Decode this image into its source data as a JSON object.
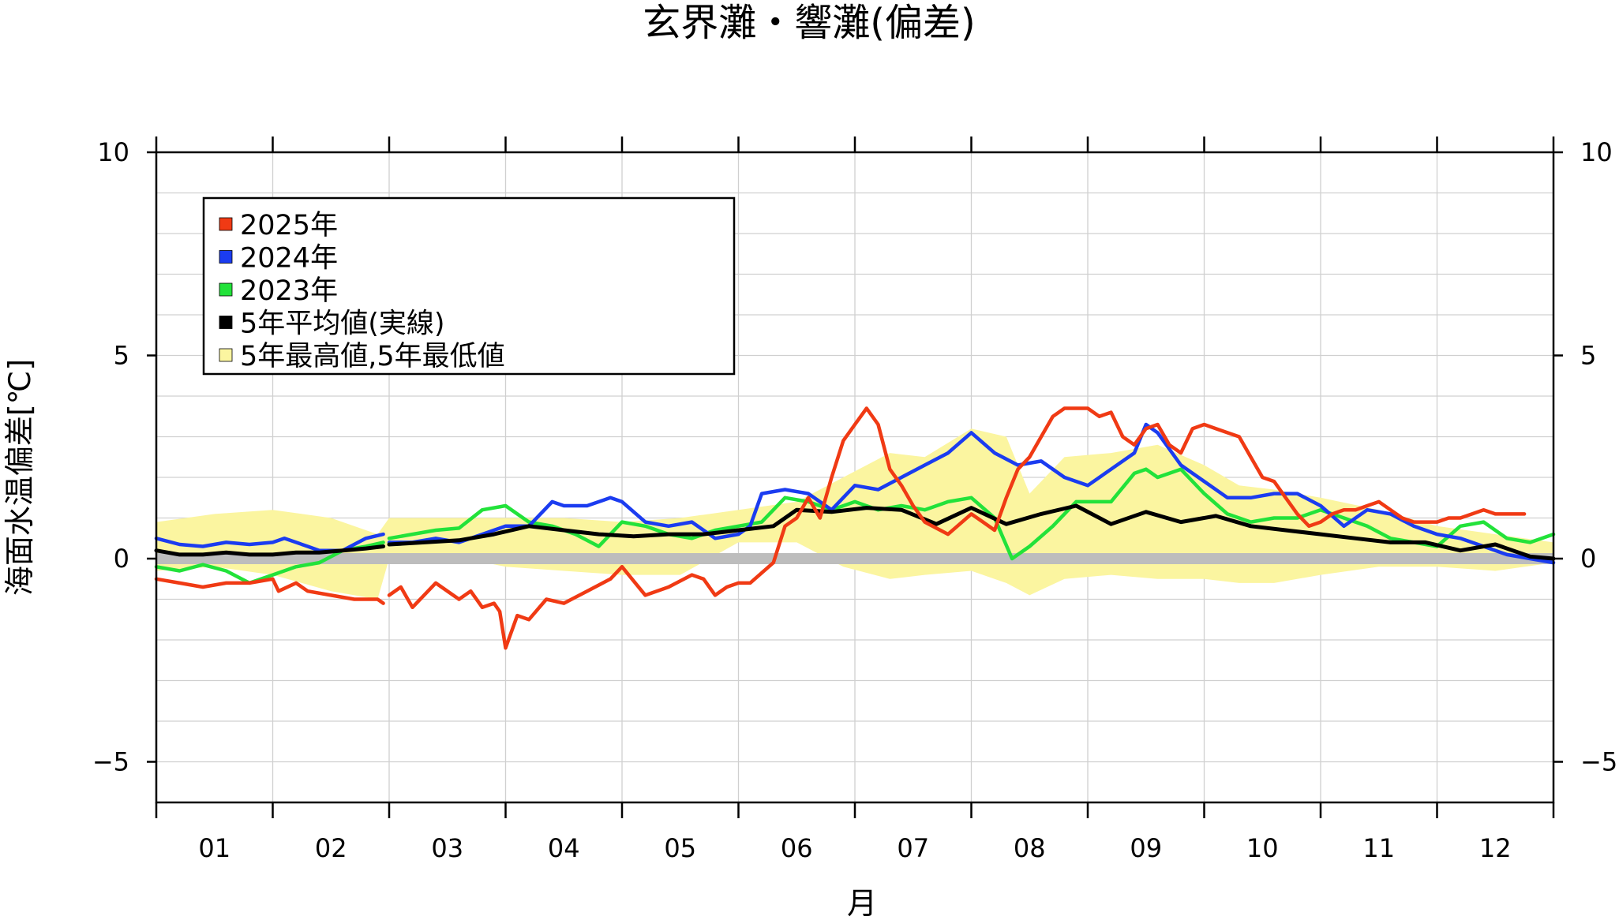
{
  "chart_data": {
    "type": "line",
    "title": "玄界灘・響灘(偏差)",
    "xlabel": "月",
    "ylabel": "海面水温偏差[℃]",
    "ylim": [
      -6,
      10
    ],
    "yticks": [
      10,
      5,
      0,
      -5
    ],
    "ytick_labels": [
      "10",
      "5",
      "0",
      "−5"
    ],
    "minor_grid_step": 1,
    "grid": true,
    "legend_position": "top-left",
    "x_domain": [
      1,
      13
    ],
    "months": [
      "01",
      "02",
      "03",
      "04",
      "05",
      "06",
      "07",
      "08",
      "09",
      "10",
      "11",
      "12"
    ],
    "zero_band": {
      "y": 0,
      "color": "#bdbdbd"
    },
    "band": {
      "name": "5年最高値,5年最低値",
      "color": "#fbf5a0",
      "x": [
        1.0,
        1.5,
        2.0,
        2.5,
        2.9,
        3.0,
        3.5,
        4.0,
        4.5,
        5.0,
        5.5,
        6.0,
        6.5,
        6.9,
        7.3,
        7.6,
        8.0,
        8.3,
        8.5,
        8.8,
        9.2,
        9.6,
        10.0,
        10.3,
        10.6,
        11.0,
        11.5,
        12.0,
        12.5,
        13.0
      ],
      "upper": [
        0.9,
        1.1,
        1.2,
        1.0,
        0.6,
        1.0,
        1.0,
        1.0,
        1.0,
        0.9,
        1.0,
        1.2,
        1.4,
        2.0,
        2.6,
        2.5,
        3.2,
        3.0,
        1.6,
        2.5,
        2.6,
        2.8,
        2.3,
        1.8,
        1.7,
        1.5,
        1.2,
        0.8,
        0.6,
        0.4
      ],
      "lower": [
        -0.3,
        -0.2,
        -0.4,
        -0.8,
        -1.0,
        0.0,
        0.1,
        -0.2,
        -0.3,
        -0.4,
        -0.4,
        0.4,
        0.4,
        -0.2,
        -0.5,
        -0.4,
        -0.3,
        -0.6,
        -0.9,
        -0.5,
        -0.4,
        -0.5,
        -0.5,
        -0.6,
        -0.6,
        -0.4,
        -0.2,
        -0.2,
        -0.3,
        -0.1
      ]
    },
    "series": [
      {
        "name": "2025年",
        "color": "#f03a14",
        "segments": [
          {
            "x": [
              1.0,
              1.2,
              1.4,
              1.6,
              1.8,
              2.0,
              2.05,
              2.2,
              2.3,
              2.5,
              2.7,
              2.9,
              2.95
            ],
            "y": [
              -0.5,
              -0.6,
              -0.7,
              -0.6,
              -0.6,
              -0.5,
              -0.8,
              -0.6,
              -0.8,
              -0.9,
              -1.0,
              -1.0,
              -1.1
            ]
          },
          {
            "x": [
              3.0,
              3.1,
              3.2,
              3.4,
              3.6,
              3.7,
              3.8,
              3.9,
              3.95,
              4.0,
              4.1,
              4.2,
              4.35,
              4.5,
              4.7,
              4.9,
              5.0,
              5.2,
              5.4,
              5.6,
              5.7,
              5.8,
              5.9,
              6.0,
              6.1,
              6.3,
              6.4,
              6.5,
              6.6,
              6.7,
              6.8,
              6.9,
              7.0,
              7.1,
              7.2,
              7.3,
              7.4,
              7.5,
              7.6,
              7.8,
              8.0,
              8.1,
              8.2,
              8.3,
              8.4,
              8.5,
              8.6,
              8.7,
              8.8,
              8.9,
              9.0,
              9.1,
              9.2,
              9.3,
              9.4,
              9.5,
              9.6,
              9.7,
              9.8,
              9.9,
              10.0,
              10.1,
              10.2,
              10.3,
              10.4,
              10.5,
              10.6,
              10.7,
              10.8,
              10.9,
              11.0,
              11.1,
              11.2,
              11.3,
              11.4,
              11.5,
              11.6,
              11.7,
              11.8,
              11.9,
              12.0,
              12.1,
              12.2,
              12.3,
              12.4,
              12.5,
              12.6,
              12.7,
              12.75
            ],
            "y": [
              -0.9,
              -0.7,
              -1.2,
              -0.6,
              -1.0,
              -0.8,
              -1.2,
              -1.1,
              -1.3,
              -2.2,
              -1.4,
              -1.5,
              -1.0,
              -1.1,
              -0.8,
              -0.5,
              -0.2,
              -0.9,
              -0.7,
              -0.4,
              -0.5,
              -0.9,
              -0.7,
              -0.6,
              -0.6,
              -0.1,
              0.8,
              1.0,
              1.5,
              1.0,
              2.0,
              2.9,
              3.3,
              3.7,
              3.3,
              2.2,
              1.8,
              1.3,
              0.9,
              0.6,
              1.1,
              0.9,
              0.7,
              1.5,
              2.2,
              2.5,
              3.0,
              3.5,
              3.7,
              3.7,
              3.7,
              3.5,
              3.6,
              3.0,
              2.8,
              3.2,
              3.3,
              2.8,
              2.6,
              3.2,
              3.3,
              3.2,
              3.1,
              3.0,
              2.5,
              2.0,
              1.9,
              1.5,
              1.1,
              0.8,
              0.9,
              1.1,
              1.2,
              1.2,
              1.3,
              1.4,
              1.2,
              1.0,
              0.9,
              0.9,
              0.9,
              1.0,
              1.0,
              1.1,
              1.2,
              1.1,
              1.1,
              1.1,
              1.1
            ]
          }
        ]
      },
      {
        "name": "2024年",
        "color": "#1b3cf0",
        "segments": [
          {
            "x": [
              1.0,
              1.2,
              1.4,
              1.6,
              1.8,
              2.0,
              2.1,
              2.3,
              2.4,
              2.6,
              2.8,
              2.95
            ],
            "y": [
              0.5,
              0.35,
              0.3,
              0.4,
              0.35,
              0.4,
              0.5,
              0.3,
              0.2,
              0.2,
              0.5,
              0.6
            ]
          },
          {
            "x": [
              3.0,
              3.2,
              3.4,
              3.6,
              3.8,
              4.0,
              4.2,
              4.4,
              4.5,
              4.7,
              4.9,
              5.0,
              5.2,
              5.4,
              5.6,
              5.8,
              6.0,
              6.1,
              6.2,
              6.4,
              6.6,
              6.8,
              7.0,
              7.2,
              7.4,
              7.6,
              7.8,
              8.0,
              8.2,
              8.4,
              8.6,
              8.8,
              9.0,
              9.2,
              9.4,
              9.5,
              9.6,
              9.8,
              10.0,
              10.2,
              10.4,
              10.6,
              10.8,
              11.0,
              11.2,
              11.4,
              11.6,
              11.8,
              12.0,
              12.2,
              12.4,
              12.6,
              12.8,
              13.0
            ],
            "y": [
              0.4,
              0.4,
              0.5,
              0.4,
              0.6,
              0.8,
              0.8,
              1.4,
              1.3,
              1.3,
              1.5,
              1.4,
              0.9,
              0.8,
              0.9,
              0.5,
              0.6,
              0.8,
              1.6,
              1.7,
              1.6,
              1.2,
              1.8,
              1.7,
              2.0,
              2.3,
              2.6,
              3.1,
              2.6,
              2.3,
              2.4,
              2.0,
              1.8,
              2.2,
              2.6,
              3.3,
              3.1,
              2.3,
              1.9,
              1.5,
              1.5,
              1.6,
              1.6,
              1.3,
              0.8,
              1.2,
              1.1,
              0.8,
              0.6,
              0.5,
              0.3,
              0.1,
              0.0,
              -0.1
            ]
          }
        ]
      },
      {
        "name": "2023年",
        "color": "#22e23a",
        "segments": [
          {
            "x": [
              1.0,
              1.2,
              1.4,
              1.6,
              1.8,
              2.0,
              2.2,
              2.4,
              2.6,
              2.8,
              2.95
            ],
            "y": [
              -0.2,
              -0.3,
              -0.15,
              -0.3,
              -0.6,
              -0.4,
              -0.2,
              -0.1,
              0.2,
              0.3,
              0.4
            ]
          },
          {
            "x": [
              3.0,
              3.2,
              3.4,
              3.6,
              3.8,
              4.0,
              4.2,
              4.4,
              4.6,
              4.8,
              5.0,
              5.2,
              5.4,
              5.6,
              5.8,
              6.0,
              6.2,
              6.4,
              6.6,
              6.8,
              7.0,
              7.2,
              7.4,
              7.6,
              7.8,
              8.0,
              8.2,
              8.35,
              8.5,
              8.7,
              8.9,
              9.0,
              9.2,
              9.4,
              9.5,
              9.6,
              9.8,
              10.0,
              10.2,
              10.4,
              10.6,
              10.8,
              11.0,
              11.2,
              11.4,
              11.6,
              11.8,
              12.0,
              12.2,
              12.4,
              12.6,
              12.8,
              13.0
            ],
            "y": [
              0.5,
              0.6,
              0.7,
              0.75,
              1.2,
              1.3,
              0.9,
              0.8,
              0.6,
              0.3,
              0.9,
              0.8,
              0.6,
              0.5,
              0.7,
              0.8,
              0.9,
              1.5,
              1.4,
              1.2,
              1.4,
              1.2,
              1.3,
              1.2,
              1.4,
              1.5,
              1.0,
              0.0,
              0.3,
              0.8,
              1.4,
              1.4,
              1.4,
              2.1,
              2.2,
              2.0,
              2.2,
              1.6,
              1.1,
              0.9,
              1.0,
              1.0,
              1.2,
              1.0,
              0.8,
              0.5,
              0.4,
              0.3,
              0.8,
              0.9,
              0.5,
              0.4,
              0.6
            ]
          }
        ]
      },
      {
        "name": "5年平均値(実線)",
        "color": "#000000",
        "segments": [
          {
            "x": [
              1.0,
              1.2,
              1.4,
              1.6,
              1.8,
              2.0,
              2.2,
              2.4,
              2.6,
              2.8,
              2.95
            ],
            "y": [
              0.2,
              0.1,
              0.1,
              0.15,
              0.1,
              0.1,
              0.15,
              0.15,
              0.2,
              0.25,
              0.3
            ]
          },
          {
            "x": [
              3.0,
              3.3,
              3.6,
              3.9,
              4.2,
              4.5,
              4.8,
              5.1,
              5.4,
              5.7,
              6.0,
              6.3,
              6.5,
              6.8,
              7.1,
              7.4,
              7.7,
              8.0,
              8.3,
              8.6,
              8.9,
              9.2,
              9.5,
              9.8,
              10.1,
              10.4,
              10.7,
              11.0,
              11.3,
              11.6,
              11.9,
              12.2,
              12.5,
              12.8,
              13.0
            ],
            "y": [
              0.35,
              0.4,
              0.45,
              0.6,
              0.8,
              0.7,
              0.6,
              0.55,
              0.6,
              0.6,
              0.7,
              0.8,
              1.2,
              1.15,
              1.25,
              1.2,
              0.85,
              1.25,
              0.85,
              1.1,
              1.3,
              0.85,
              1.15,
              0.9,
              1.05,
              0.8,
              0.7,
              0.6,
              0.5,
              0.4,
              0.4,
              0.2,
              0.35,
              0.05,
              0.0
            ]
          }
        ]
      }
    ]
  }
}
